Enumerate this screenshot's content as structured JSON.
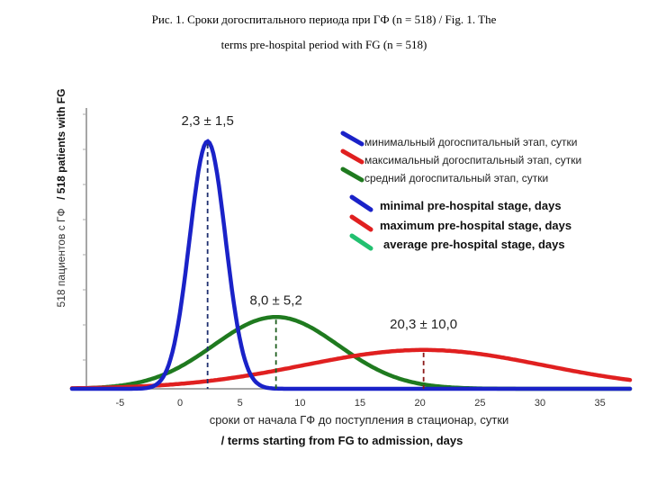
{
  "caption": {
    "line1": "Рис. 1. Сроки догоспитального периода  при ГФ (n = 518) / Fig. 1. The",
    "line2": "terms pre-hospital period with FG (n = 518)"
  },
  "chart_data": {
    "type": "line",
    "xlabel_ru": "сроки от начала ГФ до поступления в стационар, сутки",
    "xlabel_en": "/ terms starting from FG to admission, days",
    "ylabel_ru": "518 пациентов с ГФ",
    "ylabel_en": "/ 518 patients with FG",
    "xlim": [
      -9,
      37.5
    ],
    "x_ticks": [
      -5,
      0,
      5,
      10,
      15,
      20,
      25,
      30,
      35
    ],
    "grid": false,
    "legend_position": "top-right",
    "series": [
      {
        "name_ru": "минимальный догоспитальный этап, сутки",
        "name_en": "minimal pre-hospital stage, days",
        "color": "#1a22c8",
        "mean": 2.3,
        "sd": 1.5,
        "peak": 1.0,
        "annotation": "2,3 ± 1,5"
      },
      {
        "name_ru": "максимальный догоспитальный этап, сутки",
        "name_en": "maximum pre-hospital stage, days",
        "color": "#e02020",
        "mean": 20.3,
        "sd": 10.0,
        "peak": 0.157,
        "annotation": "20,3 ± 10,0"
      },
      {
        "name_ru": "средний догоспитальный этап, сутки",
        "name_en": "average pre-hospital stage, days",
        "color": "#1f7a1f",
        "mean": 8.0,
        "sd": 5.2,
        "peak": 0.29,
        "annotation": "8,0 ± 5,2"
      }
    ]
  }
}
